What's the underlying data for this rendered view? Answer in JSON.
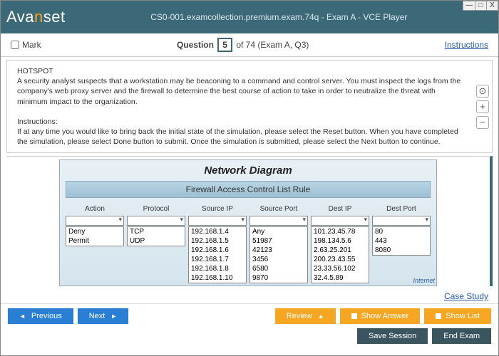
{
  "window": {
    "logo_pre": "Ava",
    "logo_accent": "n",
    "logo_post": "set",
    "title": "CS0-001.examcollection.premium.exam.74q - Exam A - VCE Player",
    "controls": {
      "min": "—",
      "max": "□",
      "close": "X"
    }
  },
  "questionBar": {
    "mark": "Mark",
    "word": "Question",
    "number": "5",
    "suffix": "of 74 (Exam A, Q3)",
    "instructions": "Instructions"
  },
  "questionText": {
    "hotspot": "HOTSPOT",
    "body": "A security analyst suspects that a workstation may be beaconing to a command and control server. You must inspect the logs from the company's web proxy server and the firewall to determine the best course of action to take in order to neutralize the threat with minimum impact to the organization.",
    "instrLabel": "Instructions:",
    "instrBody": "If at any time you would like to bring back the initial state of the simulation, please select the Reset button. When you have completed the simulation, please select Done button to submit. Once the simulation is submitted, please select the Next button to continue."
  },
  "zoom": {
    "reset": "⊙",
    "plus": "+",
    "minus": "−"
  },
  "diagram": {
    "title": "Network Diagram",
    "aclTitle": "Firewall Access Control List Rule",
    "columns": [
      {
        "hdr": "Action",
        "items": [
          "Deny",
          "Permit"
        ]
      },
      {
        "hdr": "Protocol",
        "items": [
          "TCP",
          "UDP"
        ]
      },
      {
        "hdr": "Source IP",
        "items": [
          "192.168.1.4",
          "192.168.1.5",
          "192.168.1.6",
          "192.168.1.7",
          "192.168.1.8",
          "192.168.1.10"
        ]
      },
      {
        "hdr": "Source Port",
        "items": [
          "Any",
          "51987",
          "42123",
          "3456",
          "6580",
          "9870"
        ]
      },
      {
        "hdr": "Dest IP",
        "items": [
          "101.23.45.78",
          "198.134.5.6",
          "2.63.25.201",
          "200.23.43.55",
          "23.33.56.102",
          "32.4.5.89"
        ]
      },
      {
        "hdr": "Dest Port",
        "items": [
          "80",
          "443",
          "8080"
        ]
      }
    ],
    "internetLabel": "Internet"
  },
  "caseStudy": "Case Study",
  "buttons": {
    "previous": "Previous",
    "next": "Next",
    "review": "Review",
    "showAnswer": "Show Answer",
    "showList": "Show List",
    "saveSession": "Save Session",
    "endExam": "End Exam"
  },
  "style": {
    "headerBg": "#3b6978",
    "accent": "#f5a623",
    "blueBtn": "#2a7fd4",
    "darkBtn": "#3b5560"
  }
}
